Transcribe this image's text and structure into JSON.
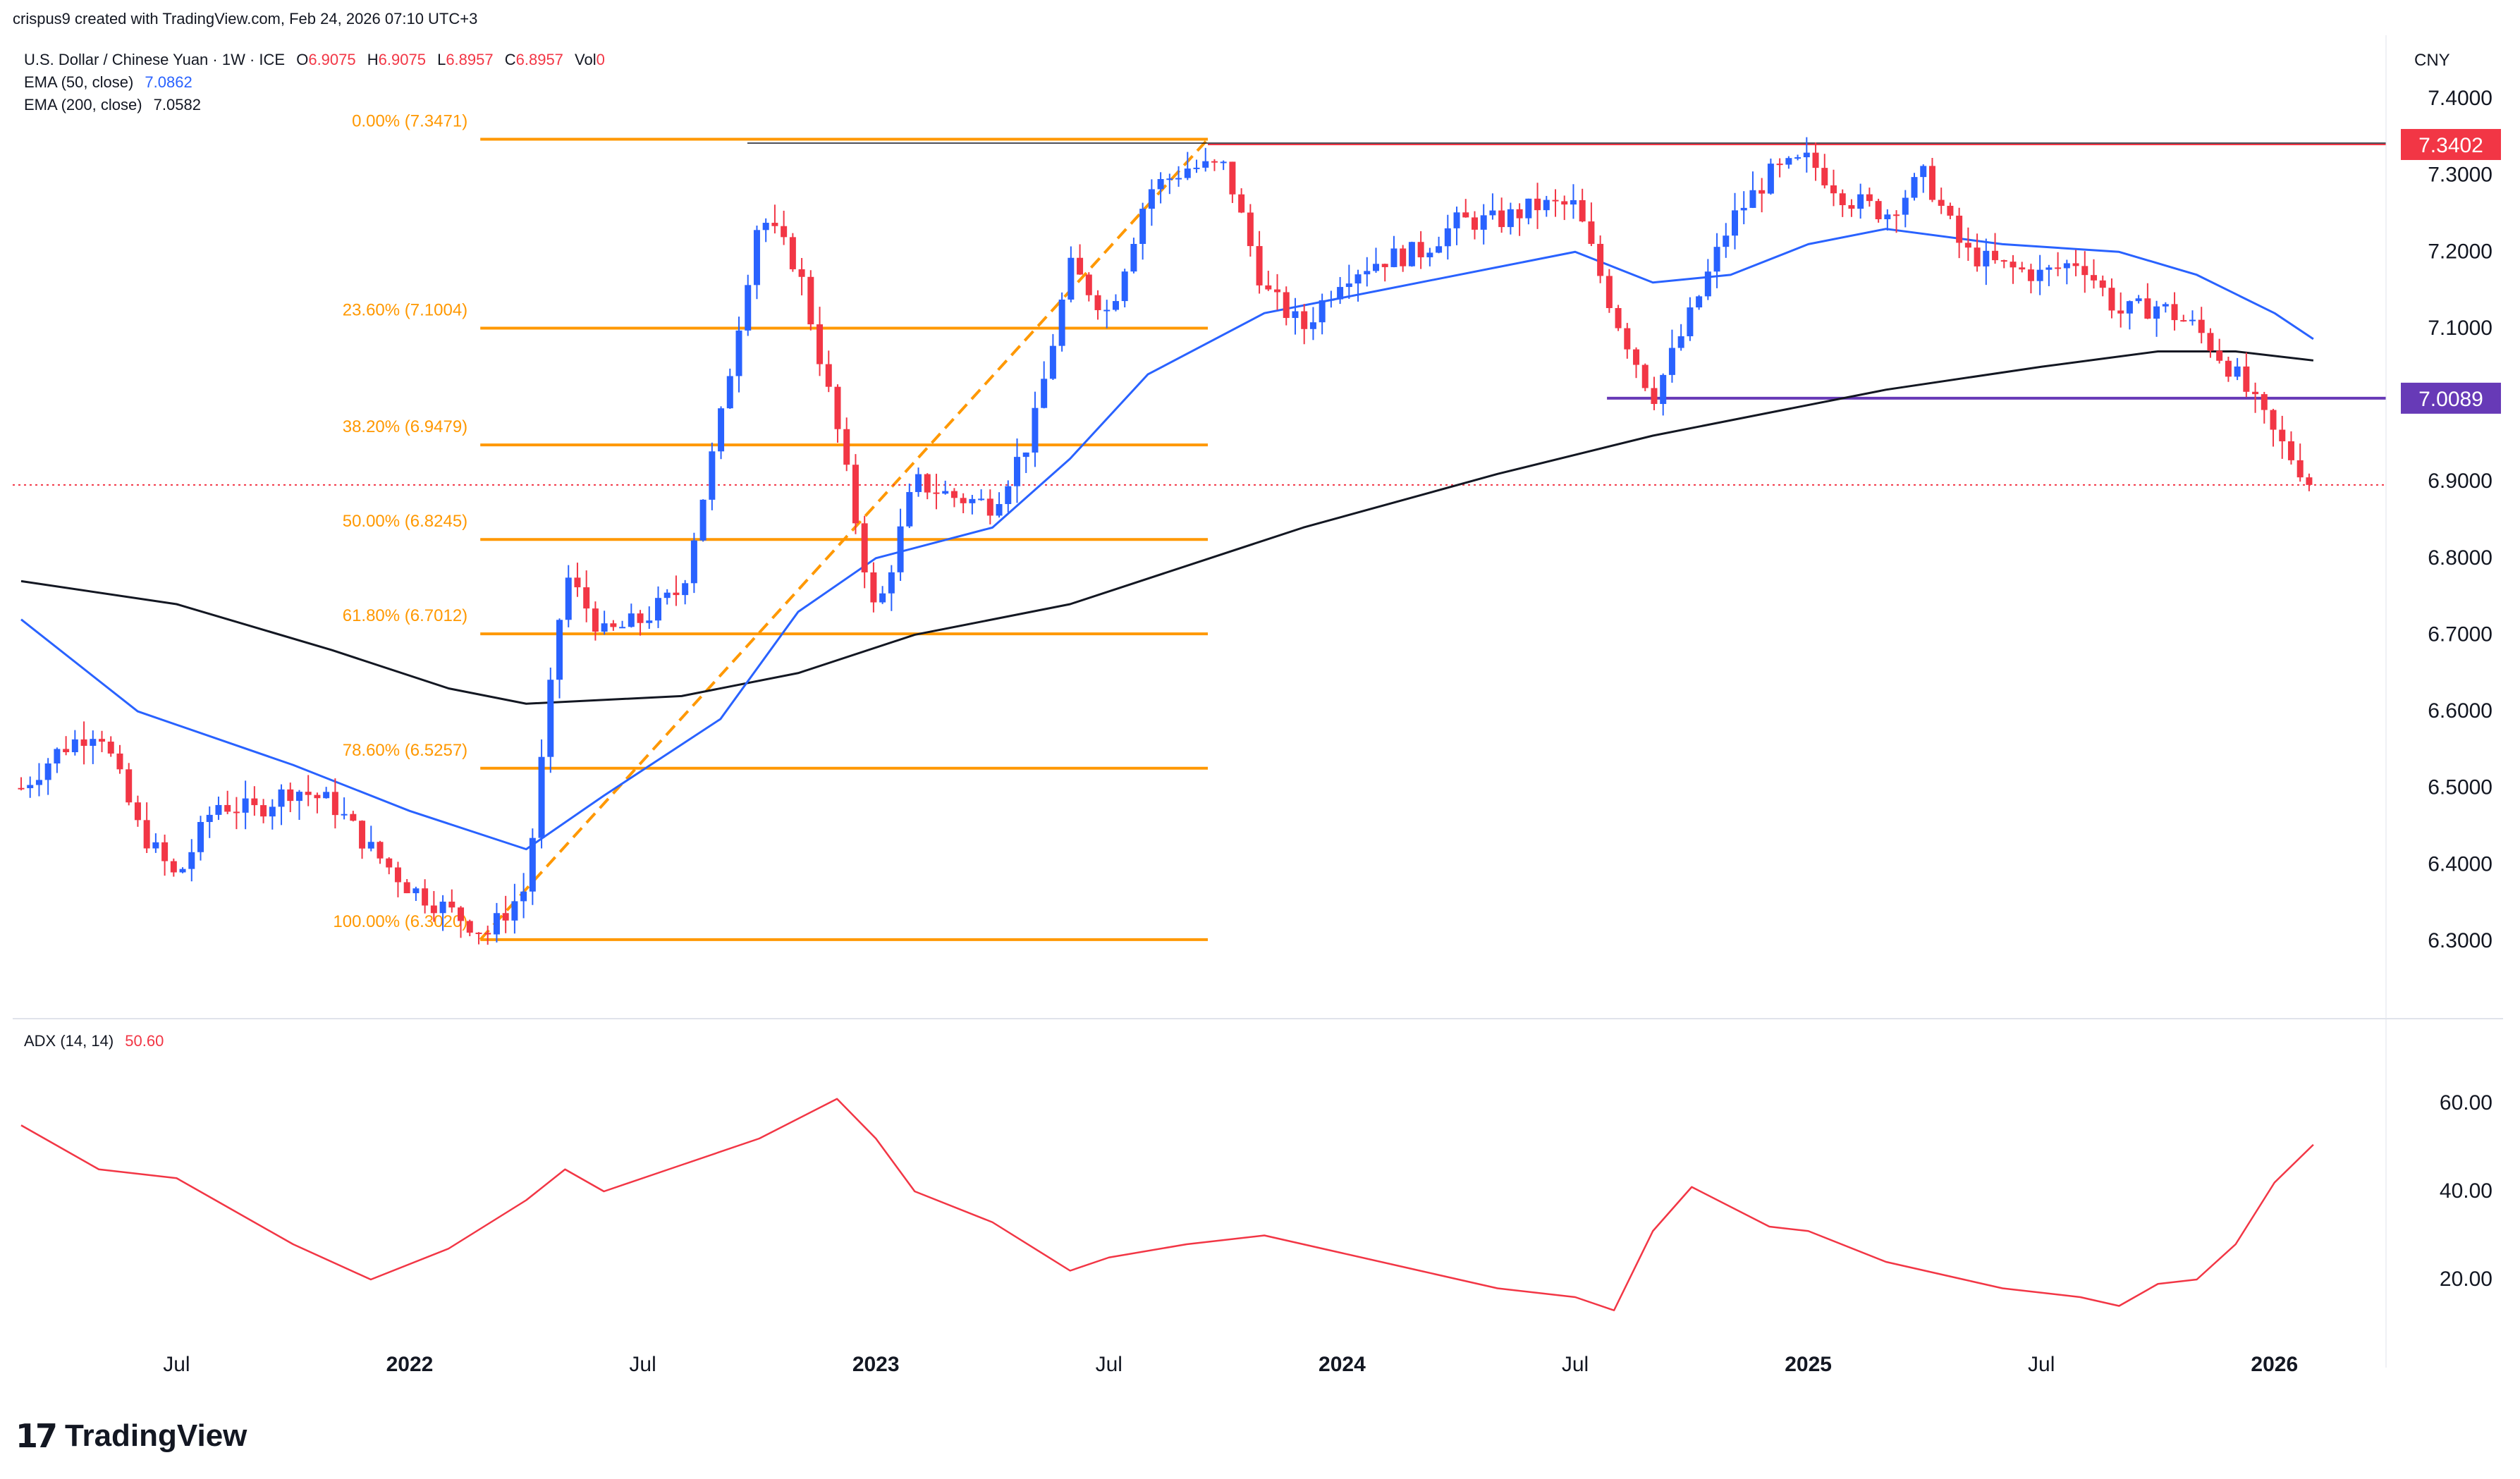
{
  "header": {
    "credit": "crispus9 created with TradingView.com, Feb 24, 2026 07:10 UTC+3",
    "symbol": "U.S. Dollar / Chinese Yuan · 1W · ICE",
    "ohlc": {
      "o_label": "O",
      "o": "6.9075",
      "h_label": "H",
      "h": "6.9075",
      "l_label": "L",
      "l": "6.8957",
      "c_label": "C",
      "c": "6.8957",
      "vol_label": "Vol",
      "vol": "0"
    },
    "ema50_label": "EMA (50, close)",
    "ema50_value": "7.0862",
    "ema200_label": "EMA (200, close)",
    "ema200_value": "7.0582",
    "adx_label": "ADX (14, 14)",
    "adx_value": "50.60",
    "currency": "CNY"
  },
  "colors": {
    "up": "#2962ff",
    "down": "#f23645",
    "ema50": "#2962ff",
    "ema200": "#131722",
    "fib": "#ff9800",
    "resistance": "#f23645",
    "support": "#673ab7",
    "adx": "#f23645"
  },
  "chart_data": [
    {
      "type": "candlestick",
      "title": "U.S. Dollar / Chinese Yuan · 1W · ICE",
      "ylim": [
        6.2,
        7.45
      ],
      "y_ticks": [
        "7.4000",
        "7.3000",
        "7.2000",
        "7.1000",
        "7.0000",
        "6.9000",
        "6.8000",
        "6.7000",
        "6.6000",
        "6.5000",
        "6.4000",
        "6.3000"
      ],
      "x_ticks": [
        "Jul",
        "2022",
        "Jul",
        "2023",
        "Jul",
        "2024",
        "Jul",
        "2025",
        "Jul",
        "2026"
      ],
      "price_labels": [
        {
          "value": 7.3402,
          "text": "7.3402",
          "color": "#f23645"
        },
        {
          "value": 7.0089,
          "text": "7.0089",
          "color": "#673ab7"
        }
      ],
      "last_price": 6.8957,
      "fibonacci": [
        {
          "level": "0.00%",
          "value": 7.3471,
          "text": "0.00% (7.3471)"
        },
        {
          "level": "23.60%",
          "value": 7.1004,
          "text": "23.60% (7.1004)"
        },
        {
          "level": "38.20%",
          "value": 6.9479,
          "text": "38.20% (6.9479)"
        },
        {
          "level": "50.00%",
          "value": 6.8245,
          "text": "50.00% (6.8245)"
        },
        {
          "level": "61.80%",
          "value": 6.7012,
          "text": "61.80% (6.7012)"
        },
        {
          "level": "78.60%",
          "value": 6.5257,
          "text": "78.60% (6.5257)"
        },
        {
          "level": "100.00%",
          "value": 6.302,
          "text": "100.00% (6.3020)"
        }
      ],
      "fib_range": {
        "start": "2022-03",
        "end": "2023-09"
      },
      "resistance": 7.3402,
      "support": 7.0089,
      "price_path": [
        [
          "2021-03",
          6.5
        ],
        [
          "2021-04",
          6.55
        ],
        [
          "2021-05",
          6.58
        ],
        [
          "2021-06",
          6.45
        ],
        [
          "2021-07",
          6.38
        ],
        [
          "2021-08",
          6.48
        ],
        [
          "2021-09",
          6.47
        ],
        [
          "2021-10",
          6.5
        ],
        [
          "2021-11",
          6.48
        ],
        [
          "2021-12",
          6.42
        ],
        [
          "2022-01",
          6.37
        ],
        [
          "2022-02",
          6.34
        ],
        [
          "2022-03",
          6.31
        ],
        [
          "2022-04",
          6.37
        ],
        [
          "2022-05",
          6.78
        ],
        [
          "2022-06",
          6.7
        ],
        [
          "2022-07",
          6.72
        ],
        [
          "2022-08",
          6.76
        ],
        [
          "2022-09",
          6.98
        ],
        [
          "2022-10",
          7.25
        ],
        [
          "2022-11",
          7.18
        ],
        [
          "2022-12",
          6.97
        ],
        [
          "2023-01",
          6.72
        ],
        [
          "2023-02",
          6.9
        ],
        [
          "2023-03",
          6.88
        ],
        [
          "2023-04",
          6.87
        ],
        [
          "2023-05",
          6.96
        ],
        [
          "2023-06",
          7.18
        ],
        [
          "2023-07",
          7.12
        ],
        [
          "2023-08",
          7.28
        ],
        [
          "2023-09",
          7.31
        ],
        [
          "2023-10",
          7.31
        ],
        [
          "2023-11",
          7.15
        ],
        [
          "2023-12",
          7.1
        ],
        [
          "2024-01",
          7.17
        ],
        [
          "2024-02",
          7.19
        ],
        [
          "2024-03",
          7.2
        ],
        [
          "2024-04",
          7.24
        ],
        [
          "2024-05",
          7.24
        ],
        [
          "2024-06",
          7.26
        ],
        [
          "2024-07",
          7.26
        ],
        [
          "2024-08",
          7.12
        ],
        [
          "2024-09",
          7.01
        ],
        [
          "2024-10",
          7.12
        ],
        [
          "2024-11",
          7.24
        ],
        [
          "2024-12",
          7.3
        ],
        [
          "2025-01",
          7.32
        ],
        [
          "2025-02",
          7.27
        ],
        [
          "2025-03",
          7.25
        ],
        [
          "2025-04",
          7.3
        ],
        [
          "2025-05",
          7.2
        ],
        [
          "2025-06",
          7.18
        ],
        [
          "2025-07",
          7.17
        ],
        [
          "2025-08",
          7.19
        ],
        [
          "2025-09",
          7.12
        ],
        [
          "2025-10",
          7.13
        ],
        [
          "2025-11",
          7.1
        ],
        [
          "2025-12",
          7.04
        ],
        [
          "2026-01",
          6.96
        ],
        [
          "2026-02",
          6.8957
        ]
      ],
      "series": [
        {
          "name": "EMA (50, close)",
          "points": [
            [
              "2021-03",
              6.72
            ],
            [
              "2021-06",
              6.6
            ],
            [
              "2021-10",
              6.53
            ],
            [
              "2022-01",
              6.47
            ],
            [
              "2022-04",
              6.42
            ],
            [
              "2022-06",
              6.49
            ],
            [
              "2022-09",
              6.59
            ],
            [
              "2022-11",
              6.73
            ],
            [
              "2023-01",
              6.8
            ],
            [
              "2023-04",
              6.84
            ],
            [
              "2023-06",
              6.93
            ],
            [
              "2023-08",
              7.04
            ],
            [
              "2023-11",
              7.12
            ],
            [
              "2024-02",
              7.15
            ],
            [
              "2024-05",
              7.18
            ],
            [
              "2024-07",
              7.2
            ],
            [
              "2024-09",
              7.16
            ],
            [
              "2024-11",
              7.17
            ],
            [
              "2025-01",
              7.21
            ],
            [
              "2025-03",
              7.23
            ],
            [
              "2025-06",
              7.21
            ],
            [
              "2025-09",
              7.2
            ],
            [
              "2025-11",
              7.17
            ],
            [
              "2026-01",
              7.12
            ],
            [
              "2026-02",
              7.0862
            ]
          ]
        },
        {
          "name": "EMA (200, close)",
          "points": [
            [
              "2021-03",
              6.77
            ],
            [
              "2021-07",
              6.74
            ],
            [
              "2021-11",
              6.68
            ],
            [
              "2022-02",
              6.63
            ],
            [
              "2022-04",
              6.61
            ],
            [
              "2022-08",
              6.62
            ],
            [
              "2022-11",
              6.65
            ],
            [
              "2023-02",
              6.7
            ],
            [
              "2023-06",
              6.74
            ],
            [
              "2023-09",
              6.79
            ],
            [
              "2023-12",
              6.84
            ],
            [
              "2024-05",
              6.91
            ],
            [
              "2024-09",
              6.96
            ],
            [
              "2024-12",
              6.99
            ],
            [
              "2025-03",
              7.02
            ],
            [
              "2025-07",
              7.05
            ],
            [
              "2025-10",
              7.07
            ],
            [
              "2025-12",
              7.07
            ],
            [
              "2026-02",
              7.0582
            ]
          ]
        }
      ]
    },
    {
      "type": "line",
      "title": "ADX (14, 14)",
      "ylim": [
        0,
        75
      ],
      "y_ticks": [
        "60.00",
        "40.00",
        "20.00"
      ],
      "series": [
        {
          "name": "ADX (14, 14)",
          "points": [
            [
              "2021-03",
              55
            ],
            [
              "2021-05",
              45
            ],
            [
              "2021-07",
              43
            ],
            [
              "2021-08",
              38
            ],
            [
              "2021-10",
              28
            ],
            [
              "2021-12",
              20
            ],
            [
              "2022-02",
              27
            ],
            [
              "2022-04",
              38
            ],
            [
              "2022-05",
              45
            ],
            [
              "2022-06",
              40
            ],
            [
              "2022-08",
              46
            ],
            [
              "2022-10",
              52
            ],
            [
              "2022-12",
              61
            ],
            [
              "2023-01",
              52
            ],
            [
              "2023-02",
              40
            ],
            [
              "2023-04",
              33
            ],
            [
              "2023-06",
              22
            ],
            [
              "2023-07",
              25
            ],
            [
              "2023-09",
              28
            ],
            [
              "2023-11",
              30
            ],
            [
              "2024-01",
              26
            ],
            [
              "2024-03",
              22
            ],
            [
              "2024-05",
              18
            ],
            [
              "2024-07",
              16
            ],
            [
              "2024-08",
              13
            ],
            [
              "2024-09",
              31
            ],
            [
              "2024-10",
              41
            ],
            [
              "2024-12",
              32
            ],
            [
              "2025-01",
              31
            ],
            [
              "2025-03",
              24
            ],
            [
              "2025-05",
              20
            ],
            [
              "2025-06",
              18
            ],
            [
              "2025-08",
              16
            ],
            [
              "2025-09",
              14
            ],
            [
              "2025-10",
              19
            ],
            [
              "2025-11",
              20
            ],
            [
              "2025-12",
              28
            ],
            [
              "2026-01",
              42
            ],
            [
              "2026-02",
              50.6
            ]
          ]
        }
      ]
    }
  ],
  "brand": {
    "logo_text": "TradingView"
  }
}
